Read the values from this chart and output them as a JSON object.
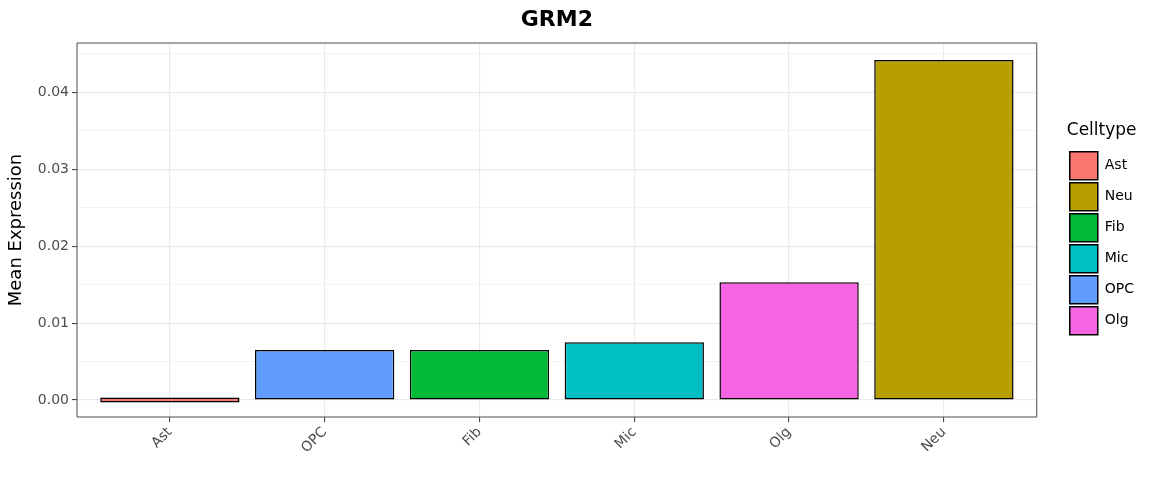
{
  "chart_data": {
    "type": "bar",
    "title": "GRM2",
    "ylabel": "Mean Expression",
    "legend_title": "Celltype",
    "categories": [
      "Ast",
      "OPC",
      "Fib",
      "Mic",
      "Olg",
      "Neu"
    ],
    "series": [
      {
        "name": "Ast",
        "color": "#f8766d",
        "values": [
          0,
          null,
          null,
          null,
          null,
          null
        ]
      },
      {
        "name": "Neu",
        "color": "#b79f00",
        "values": [
          null,
          null,
          null,
          null,
          null,
          0.0442
        ]
      },
      {
        "name": "Fib",
        "color": "#00ba38",
        "values": [
          null,
          null,
          0.0065,
          null,
          null,
          null
        ]
      },
      {
        "name": "Mic",
        "color": "#00bfc4",
        "values": [
          null,
          null,
          null,
          0.0075,
          null,
          null
        ]
      },
      {
        "name": "OPC",
        "color": "#619cff",
        "values": [
          null,
          0.0065,
          null,
          null,
          null,
          null
        ]
      },
      {
        "name": "Olg",
        "color": "#f564e3",
        "values": [
          null,
          null,
          null,
          null,
          0.0153,
          null
        ]
      }
    ],
    "ylim": [
      -0.0022,
      0.0464
    ],
    "yticks": [
      {
        "value": 0,
        "label": "0.00"
      },
      {
        "value": 0.005,
        "label": null
      },
      {
        "value": 0.01,
        "label": "0.01"
      },
      {
        "value": 0.015,
        "label": null
      },
      {
        "value": 0.02,
        "label": "0.02"
      },
      {
        "value": 0.025,
        "label": null
      },
      {
        "value": 0.03,
        "label": "0.03"
      },
      {
        "value": 0.035,
        "label": null
      },
      {
        "value": 0.04,
        "label": "0.04"
      },
      {
        "value": 0.045,
        "label": null
      }
    ],
    "grid": true,
    "legend": "right"
  }
}
